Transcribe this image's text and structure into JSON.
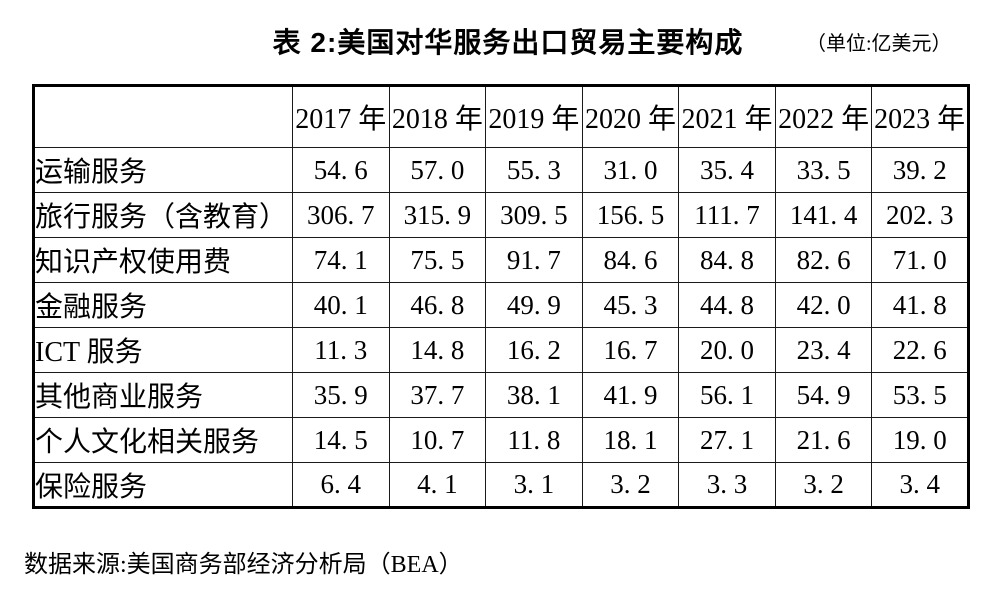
{
  "page": {
    "title": "表 2:美国对华服务出口贸易主要构成",
    "unit_note": "（单位:亿美元）",
    "source_note": "数据来源:美国商务部经济分析局（BEA）"
  },
  "chart_data": {
    "type": "table",
    "title": "表 2:美国对华服务出口贸易主要构成",
    "unit": "亿美元",
    "columns": [
      "2017 年",
      "2018 年",
      "2019 年",
      "2020 年",
      "2021 年",
      "2022 年",
      "2023 年"
    ],
    "rows": [
      {
        "label": "运输服务",
        "values": [
          54.6,
          57.0,
          55.3,
          31.0,
          35.4,
          33.5,
          39.2
        ]
      },
      {
        "label": "旅行服务（含教育）",
        "values": [
          306.7,
          315.9,
          309.5,
          156.5,
          111.7,
          141.4,
          202.3
        ]
      },
      {
        "label": "知识产权使用费",
        "values": [
          74.1,
          75.5,
          91.7,
          84.6,
          84.8,
          82.6,
          71.0
        ]
      },
      {
        "label": "金融服务",
        "values": [
          40.1,
          46.8,
          49.9,
          45.3,
          44.8,
          42.0,
          41.8
        ]
      },
      {
        "label": "ICT 服务",
        "values": [
          11.3,
          14.8,
          16.2,
          16.7,
          20.0,
          23.4,
          22.6
        ]
      },
      {
        "label": "其他商业服务",
        "values": [
          35.9,
          37.7,
          38.1,
          41.9,
          56.1,
          54.9,
          53.5
        ]
      },
      {
        "label": "个人文化相关服务",
        "values": [
          14.5,
          10.7,
          11.8,
          18.1,
          27.1,
          21.6,
          19.0
        ]
      },
      {
        "label": "保险服务",
        "values": [
          6.4,
          4.1,
          3.1,
          3.2,
          3.3,
          3.2,
          3.4
        ]
      }
    ],
    "layout": {
      "grid": true,
      "header_position": "top",
      "label_column_position": "left",
      "number_format": "one decimal, space after decimal point as typeset"
    }
  }
}
